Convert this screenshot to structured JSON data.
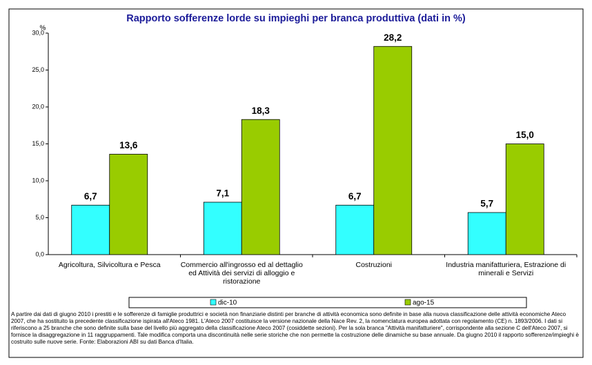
{
  "chart_data": {
    "type": "bar",
    "title": "Rapporto sofferenze lorde su impieghi per branca produttiva (dati in %)",
    "y_label": "%",
    "categories": [
      "Agricoltura, Silvicoltura e Pesca",
      "Commercio all'ingrosso ed al dettaglio ed Attività dei servizi di alloggio e ristorazione",
      "Costruzioni",
      "Industria manifatturiera, Estrazione di minerali e Servizi"
    ],
    "series": [
      {
        "name": "dic-10",
        "color": "#33ffff",
        "values": [
          6.7,
          7.1,
          6.7,
          5.7
        ],
        "value_labels": [
          "6,7",
          "7,1",
          "6,7",
          "5,7"
        ]
      },
      {
        "name": "ago-15",
        "color": "#99cc00",
        "values": [
          13.6,
          18.3,
          28.2,
          15.0
        ],
        "value_labels": [
          "13,6",
          "18,3",
          "28,2",
          "15,0"
        ]
      }
    ],
    "ylim": [
      0,
      30
    ],
    "yticks": [
      {
        "value": 0,
        "label": "0,0"
      },
      {
        "value": 5,
        "label": "5,0"
      },
      {
        "value": 10,
        "label": "10,0"
      },
      {
        "value": 15,
        "label": "15,0"
      },
      {
        "value": 20,
        "label": "20,0"
      },
      {
        "value": 25,
        "label": "25,0"
      },
      {
        "value": 30,
        "label": "30,0"
      }
    ],
    "grid": false,
    "legend": "bottom",
    "caption": "A partire dai dati di giugno 2010 i prestiti e le sofferenze di famiglie produttrici e società non finanziarie distinti per branche di attività economica sono definite in base alla nuova classificazione delle attività economiche Ateco 2007, che ha sostituito la precedente classificazione ispirata all'Ateco 1981. L'Ateco 2007 costituisce la versione nazionale della Nace Rev. 2, la nomenclatura europea adottata con regolamento (CE) n. 1893/2006. I dati si riferiscono a 25 branche che sono definite sulla base del livello più aggregato della classificazione Ateco 2007 (cosiddette sezioni). Per la sola branca \"Attività manifatturiere\", corrispondente alla sezione C dell'Ateco 2007, si fornisce la disaggregazione in 11 raggruppamenti. Tale modifica comporta una discontinuità nelle serie storiche che non permette la costruzione delle dinamiche su base annuale. Da giugno 2010 il rapporto sofferenze/impieghi è costruito sulle nuove serie. Fonte: Elaborazioni ABI su dati Banca d'Italia."
  }
}
